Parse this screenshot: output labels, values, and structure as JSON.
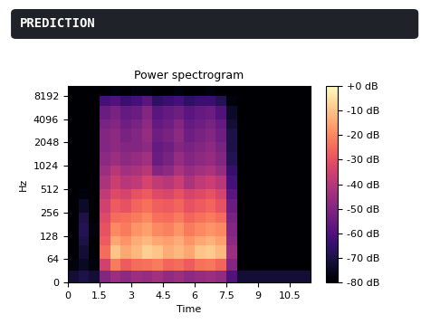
{
  "header": {
    "title": "PREDICTION"
  },
  "chart_data": {
    "type": "heatmap",
    "title": "Power spectrogram",
    "x_label": "Time",
    "y_label": "Hz",
    "log": "y",
    "color": "magma",
    "xlim": [
      0,
      11.5
    ],
    "xticks": [
      0,
      1.5,
      3,
      4.5,
      6,
      7.5,
      9,
      10.5
    ],
    "ylim": [
      0,
      11025
    ],
    "yticks": [
      0,
      64,
      128,
      256,
      512,
      1024,
      2048,
      4096,
      8192
    ],
    "x_edges": [
      0,
      0.5,
      1,
      1.5,
      2,
      2.5,
      3,
      3.5,
      4,
      4.5,
      5,
      5.5,
      6,
      6.5,
      7,
      7.5,
      8,
      8.5,
      9,
      9.5,
      10,
      10.5,
      11,
      11.5
    ],
    "y_edges": [
      0,
      32,
      64,
      96,
      128,
      192,
      256,
      384,
      512,
      768,
      1024,
      1536,
      2048,
      3072,
      4096,
      6144,
      8192,
      11025
    ],
    "cells": [
      [
        -72,
        -70,
        -72,
        -50,
        -45,
        -48,
        -45,
        -46,
        -44,
        -47,
        -45,
        -48,
        -46,
        -45,
        -47,
        -60,
        -72,
        -72,
        -72,
        -72,
        -72,
        -72,
        -72
      ],
      [
        -78,
        -75,
        -78,
        -35,
        -22,
        -28,
        -25,
        -24,
        -22,
        -26,
        -25,
        -28,
        -24,
        -23,
        -26,
        -50,
        -80,
        -80,
        -80,
        -80,
        -80,
        -80,
        -80
      ],
      [
        -80,
        -72,
        -80,
        -25,
        -10,
        -15,
        -12,
        -8,
        -10,
        -14,
        -12,
        -15,
        -10,
        -9,
        -12,
        -45,
        -80,
        -80,
        -80,
        -80,
        -80,
        -80,
        -80
      ],
      [
        -80,
        -70,
        -80,
        -28,
        -15,
        -18,
        -14,
        -12,
        -15,
        -16,
        -14,
        -18,
        -15,
        -13,
        -16,
        -48,
        -80,
        -80,
        -80,
        -80,
        -80,
        -80,
        -80
      ],
      [
        -80,
        -68,
        -78,
        -30,
        -20,
        -22,
        -18,
        -16,
        -20,
        -21,
        -18,
        -22,
        -20,
        -18,
        -20,
        -50,
        -80,
        -80,
        -80,
        -80,
        -80,
        -80,
        -80
      ],
      [
        -80,
        -70,
        -80,
        -32,
        -25,
        -24,
        -22,
        -20,
        -24,
        -25,
        -22,
        -26,
        -24,
        -22,
        -25,
        -52,
        -80,
        -80,
        -80,
        -80,
        -80,
        -80,
        -80
      ],
      [
        -80,
        -74,
        -80,
        -35,
        -28,
        -30,
        -26,
        -24,
        -27,
        -28,
        -26,
        -30,
        -28,
        -26,
        -30,
        -55,
        -80,
        -80,
        -80,
        -80,
        -80,
        -80,
        -80
      ],
      [
        -80,
        -78,
        -80,
        -38,
        -32,
        -34,
        -30,
        -28,
        -32,
        -33,
        -30,
        -34,
        -32,
        -30,
        -34,
        -58,
        -80,
        -80,
        -80,
        -80,
        -80,
        -80,
        -80
      ],
      [
        -80,
        -80,
        -80,
        -42,
        -36,
        -40,
        -38,
        -34,
        -38,
        -40,
        -36,
        -42,
        -38,
        -36,
        -40,
        -62,
        -80,
        -80,
        -80,
        -80,
        -80,
        -80,
        -80
      ],
      [
        -80,
        -80,
        -80,
        -45,
        -40,
        -44,
        -42,
        -40,
        -50,
        -48,
        -42,
        -46,
        -44,
        -42,
        -46,
        -65,
        -80,
        -80,
        -80,
        -80,
        -80,
        -80,
        -80
      ],
      [
        -80,
        -80,
        -80,
        -48,
        -45,
        -48,
        -46,
        -44,
        -55,
        -52,
        -46,
        -50,
        -48,
        -46,
        -50,
        -68,
        -80,
        -80,
        -80,
        -80,
        -80,
        -80,
        -80
      ],
      [
        -80,
        -80,
        -80,
        -50,
        -48,
        -50,
        -50,
        -48,
        -56,
        -54,
        -50,
        -52,
        -50,
        -48,
        -52,
        -70,
        -80,
        -80,
        -80,
        -80,
        -80,
        -80,
        -80
      ],
      [
        -80,
        -80,
        -80,
        -50,
        -48,
        -52,
        -50,
        -46,
        -54,
        -52,
        -48,
        -54,
        -52,
        -50,
        -54,
        -70,
        -80,
        -80,
        -80,
        -80,
        -80,
        -80,
        -80
      ],
      [
        -80,
        -80,
        -80,
        -52,
        -50,
        -54,
        -52,
        -48,
        -56,
        -54,
        -50,
        -56,
        -54,
        -52,
        -56,
        -72,
        -80,
        -80,
        -80,
        -80,
        -80,
        -80,
        -80
      ],
      [
        -80,
        -80,
        -80,
        -55,
        -52,
        -56,
        -55,
        -50,
        -58,
        -56,
        -54,
        -58,
        -56,
        -55,
        -60,
        -74,
        -80,
        -80,
        -80,
        -80,
        -80,
        -80,
        -80
      ],
      [
        -80,
        -80,
        -80,
        -62,
        -60,
        -64,
        -62,
        -58,
        -66,
        -64,
        -62,
        -66,
        -64,
        -64,
        -68,
        -78,
        -80,
        -80,
        -80,
        -80,
        -80,
        -80,
        -80
      ],
      [
        -80,
        -80,
        -80,
        -80,
        -78,
        -80,
        -78,
        -78,
        -80,
        -80,
        -78,
        -80,
        -80,
        -78,
        -80,
        -80,
        -80,
        -80,
        -80,
        -80,
        -80,
        -80,
        -80
      ]
    ],
    "colorbar": {
      "range": [
        -80,
        0
      ],
      "ticks": [
        {
          "value": 0,
          "label": "+0 dB"
        },
        {
          "value": -10,
          "label": "-10 dB"
        },
        {
          "value": -20,
          "label": "-20 dB"
        },
        {
          "value": -30,
          "label": "-30 dB"
        },
        {
          "value": -40,
          "label": "-40 dB"
        },
        {
          "value": -50,
          "label": "-50 dB"
        },
        {
          "value": -60,
          "label": "-60 dB"
        },
        {
          "value": -70,
          "label": "-70 dB"
        },
        {
          "value": -80,
          "label": "-80 dB"
        }
      ]
    }
  }
}
